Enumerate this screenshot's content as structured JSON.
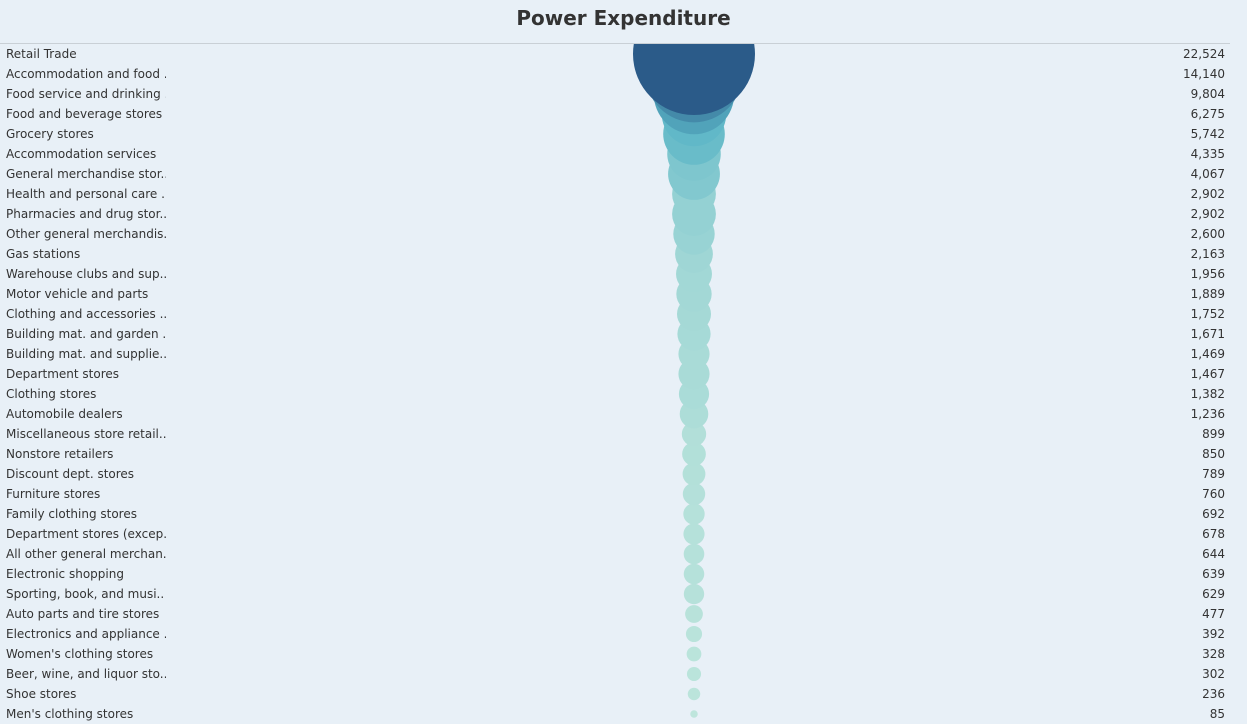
{
  "chart_data": {
    "type": "bubble",
    "title": "Power Expenditure",
    "categories": [
      "Retail Trade",
      "Accommodation and food ..",
      "Food service and drinking ..",
      "Food and beverage stores",
      "Grocery stores",
      "Accommodation services",
      "General merchandise stor..",
      "Health and personal care ..",
      "Pharmacies and drug stor..",
      "Other general merchandis..",
      "Gas stations",
      "Warehouse clubs and sup..",
      "Motor vehicle and parts",
      "Clothing and accessories ..",
      "Building mat. and garden ..",
      "Building mat. and supplie..",
      "Department stores",
      "Clothing stores",
      "Automobile dealers",
      "Miscellaneous store retail..",
      "Nonstore retailers",
      "Discount dept. stores",
      "Furniture stores",
      "Family clothing stores",
      "Department stores (excep..",
      "All other general merchan..",
      "Electronic shopping",
      "Sporting, book, and  musi..",
      "Auto parts and tire stores",
      "Electronics and appliance ..",
      "Women's clothing stores",
      "Beer, wine, and liquor sto..",
      "Shoe stores",
      "Men's clothing stores"
    ],
    "values": [
      22524,
      14140,
      9804,
      6275,
      5742,
      4335,
      4067,
      2902,
      2902,
      2600,
      2163,
      1956,
      1889,
      1752,
      1671,
      1469,
      1467,
      1382,
      1236,
      899,
      850,
      789,
      760,
      692,
      678,
      644,
      639,
      629,
      477,
      392,
      328,
      302,
      236,
      85
    ],
    "value_labels": [
      "22,524",
      "14,140",
      "9,804",
      "6,275",
      "5,742",
      "4,335",
      "4,067",
      "2,902",
      "2,902",
      "2,600",
      "2,163",
      "1,956",
      "1,889",
      "1,752",
      "1,671",
      "1,469",
      "1,467",
      "1,382",
      "1,236",
      "899",
      "850",
      "789",
      "760",
      "692",
      "678",
      "644",
      "639",
      "629",
      "477",
      "392",
      "328",
      "302",
      "236",
      "85"
    ],
    "colors": {
      "high": "#2b5b89",
      "mid": "#5ab4c6",
      "low": "#bfe6dc"
    }
  }
}
